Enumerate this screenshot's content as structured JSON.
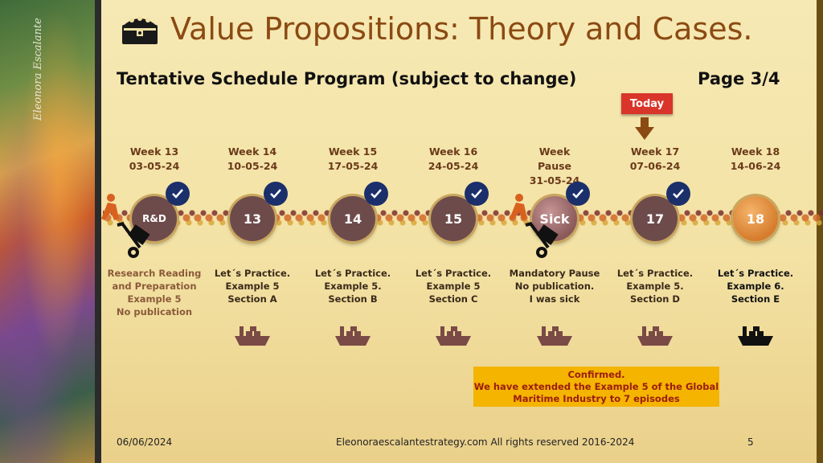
{
  "title": "Value Propositions: Theory and Cases.",
  "subtitle": "Tentative Schedule Program (subject to change)",
  "page_label": "Page 3/4",
  "signature": "Eleonora Escalante",
  "today_label": "Today",
  "weeks": [
    {
      "week": "Week 13",
      "date": "03-05-24",
      "node": "R&D",
      "desc": [
        "Research Reading",
        "and Preparation",
        "Example 5",
        "No publication"
      ]
    },
    {
      "week": "Week 14",
      "date": "10-05-24",
      "node": "13",
      "desc": [
        "Let´s Practice.",
        "Example 5",
        "Section A"
      ]
    },
    {
      "week": "Week 15",
      "date": "17-05-24",
      "node": "14",
      "desc": [
        "Let´s Practice.",
        "Example 5.",
        "Section B"
      ]
    },
    {
      "week": "Week 16",
      "date": "24-05-24",
      "node": "15",
      "desc": [
        "Let´s Practice.",
        "Example 5",
        "Section C"
      ]
    },
    {
      "week": "Week",
      "week2": "Pause",
      "date": "31-05-24",
      "node": "Sick",
      "desc": [
        "Mandatory Pause",
        "No publication.",
        "I was sick"
      ]
    },
    {
      "week": "Week 17",
      "date": "07-06-24",
      "node": "17",
      "desc": [
        "Let´s Practice.",
        "Example 5.",
        "Section D"
      ]
    },
    {
      "week": "Week 18",
      "date": "14-06-24",
      "node": "18",
      "desc": [
        "Let´s Practice.",
        "Example 6.",
        "Section E"
      ]
    }
  ],
  "notice": {
    "line1": "Confirmed.",
    "line2": "We have extended the Example 5 of the Global",
    "line3": "Maritime Industry to 7 episodes"
  },
  "footer": {
    "date": "06/06/2024",
    "copyright": "Eleonoraescalantestrategy.com  All rights reserved 2016-2024",
    "slide_number": "5"
  },
  "colors": {
    "title": "#8b4a12",
    "node": "#6e4b4b",
    "check": "#1b2f6b",
    "today": "#d9352a",
    "notice_bg": "#f4b400",
    "notice_text": "#9b1c10"
  }
}
